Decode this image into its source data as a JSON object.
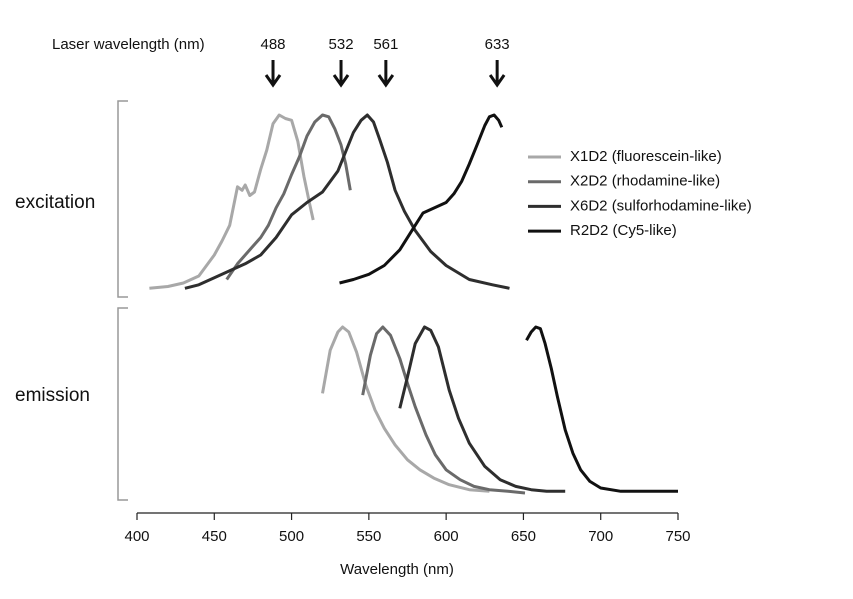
{
  "chart_data": [
    {
      "type": "line",
      "label": "excitation",
      "laser_label": "Laser wavelength (nm)",
      "lasers": [
        488,
        532,
        561,
        633
      ],
      "xlim": [
        400,
        750
      ],
      "ylim": [
        0,
        1
      ],
      "series": [
        {
          "name": "X1D2 (fluorescein-like)",
          "color": "#a8a8a8",
          "x": [
            408,
            420,
            430,
            440,
            450,
            455,
            460,
            465,
            468,
            470,
            473,
            476,
            480,
            484,
            488,
            492,
            496,
            500,
            504,
            508,
            512,
            514
          ],
          "values": [
            0.01,
            0.02,
            0.04,
            0.08,
            0.2,
            0.28,
            0.37,
            0.59,
            0.57,
            0.6,
            0.54,
            0.56,
            0.69,
            0.8,
            0.95,
            1,
            0.98,
            0.97,
            0.85,
            0.65,
            0.48,
            0.4
          ]
        },
        {
          "name": "X2D2 (rhodamine-like)",
          "color": "#6a6a6a",
          "x": [
            458,
            465,
            470,
            475,
            480,
            485,
            490,
            495,
            500,
            505,
            510,
            515,
            520,
            524,
            528,
            532,
            535,
            538
          ],
          "values": [
            0.06,
            0.15,
            0.2,
            0.25,
            0.3,
            0.37,
            0.47,
            0.55,
            0.66,
            0.76,
            0.88,
            0.96,
            1,
            0.99,
            0.92,
            0.83,
            0.72,
            0.57
          ]
        },
        {
          "name": "X6D2 (sulforhodamine-like)",
          "color": "#2e2e2e",
          "x": [
            431,
            440,
            450,
            460,
            470,
            480,
            490,
            500,
            510,
            520,
            530,
            540,
            545,
            549,
            553,
            557,
            562,
            567,
            573,
            580,
            590,
            600,
            615,
            630,
            641
          ],
          "values": [
            0.01,
            0.03,
            0.07,
            0.11,
            0.15,
            0.2,
            0.3,
            0.43,
            0.5,
            0.56,
            0.68,
            0.9,
            0.97,
            1,
            0.96,
            0.86,
            0.73,
            0.57,
            0.45,
            0.34,
            0.22,
            0.14,
            0.06,
            0.03,
            0.01
          ]
        },
        {
          "name": "R2D2 (Cy5-like)",
          "color": "#111111",
          "x": [
            531,
            540,
            550,
            560,
            570,
            580,
            585,
            590,
            595,
            600,
            605,
            610,
            615,
            620,
            625,
            628,
            631,
            634,
            636
          ],
          "values": [
            0.04,
            0.06,
            0.09,
            0.14,
            0.23,
            0.37,
            0.44,
            0.46,
            0.48,
            0.5,
            0.55,
            0.62,
            0.72,
            0.83,
            0.94,
            0.99,
            1,
            0.97,
            0.93
          ]
        }
      ]
    },
    {
      "type": "line",
      "label": "emission",
      "xlabel": "Wavelength (nm)",
      "xlim": [
        400,
        750
      ],
      "xticks": [
        400,
        450,
        500,
        550,
        600,
        650,
        700,
        750
      ],
      "ylim": [
        0,
        1
      ],
      "series": [
        {
          "color": "#a8a8a8",
          "x": [
            520,
            525,
            530,
            533,
            537,
            542,
            548,
            554,
            560,
            567,
            575,
            583,
            592,
            602,
            615,
            628
          ],
          "values": [
            0.6,
            0.86,
            0.97,
            1,
            0.97,
            0.85,
            0.65,
            0.5,
            0.39,
            0.29,
            0.2,
            0.14,
            0.09,
            0.05,
            0.02,
            0.01
          ]
        },
        {
          "color": "#6a6a6a",
          "x": [
            546,
            551,
            555,
            559,
            564,
            570,
            575,
            580,
            587,
            593,
            600,
            609,
            618,
            628,
            640,
            651
          ],
          "values": [
            0.59,
            0.83,
            0.96,
            1,
            0.95,
            0.81,
            0.66,
            0.52,
            0.35,
            0.23,
            0.14,
            0.08,
            0.04,
            0.02,
            0.01,
            0
          ]
        },
        {
          "color": "#2e2e2e",
          "x": [
            570,
            575,
            580,
            586,
            590,
            595,
            602,
            608,
            615,
            625,
            635,
            645,
            655,
            665,
            677
          ],
          "values": [
            0.51,
            0.7,
            0.9,
            1,
            0.98,
            0.88,
            0.62,
            0.45,
            0.3,
            0.16,
            0.08,
            0.04,
            0.02,
            0.01,
            0.01
          ]
        },
        {
          "color": "#111111",
          "x": [
            652,
            655,
            658,
            661,
            664,
            668,
            672,
            677,
            682,
            687,
            693,
            700,
            713,
            730,
            750
          ],
          "values": [
            0.92,
            0.97,
            1,
            0.99,
            0.9,
            0.75,
            0.58,
            0.38,
            0.24,
            0.14,
            0.07,
            0.03,
            0.01,
            0.01,
            0.01
          ]
        }
      ]
    }
  ]
}
